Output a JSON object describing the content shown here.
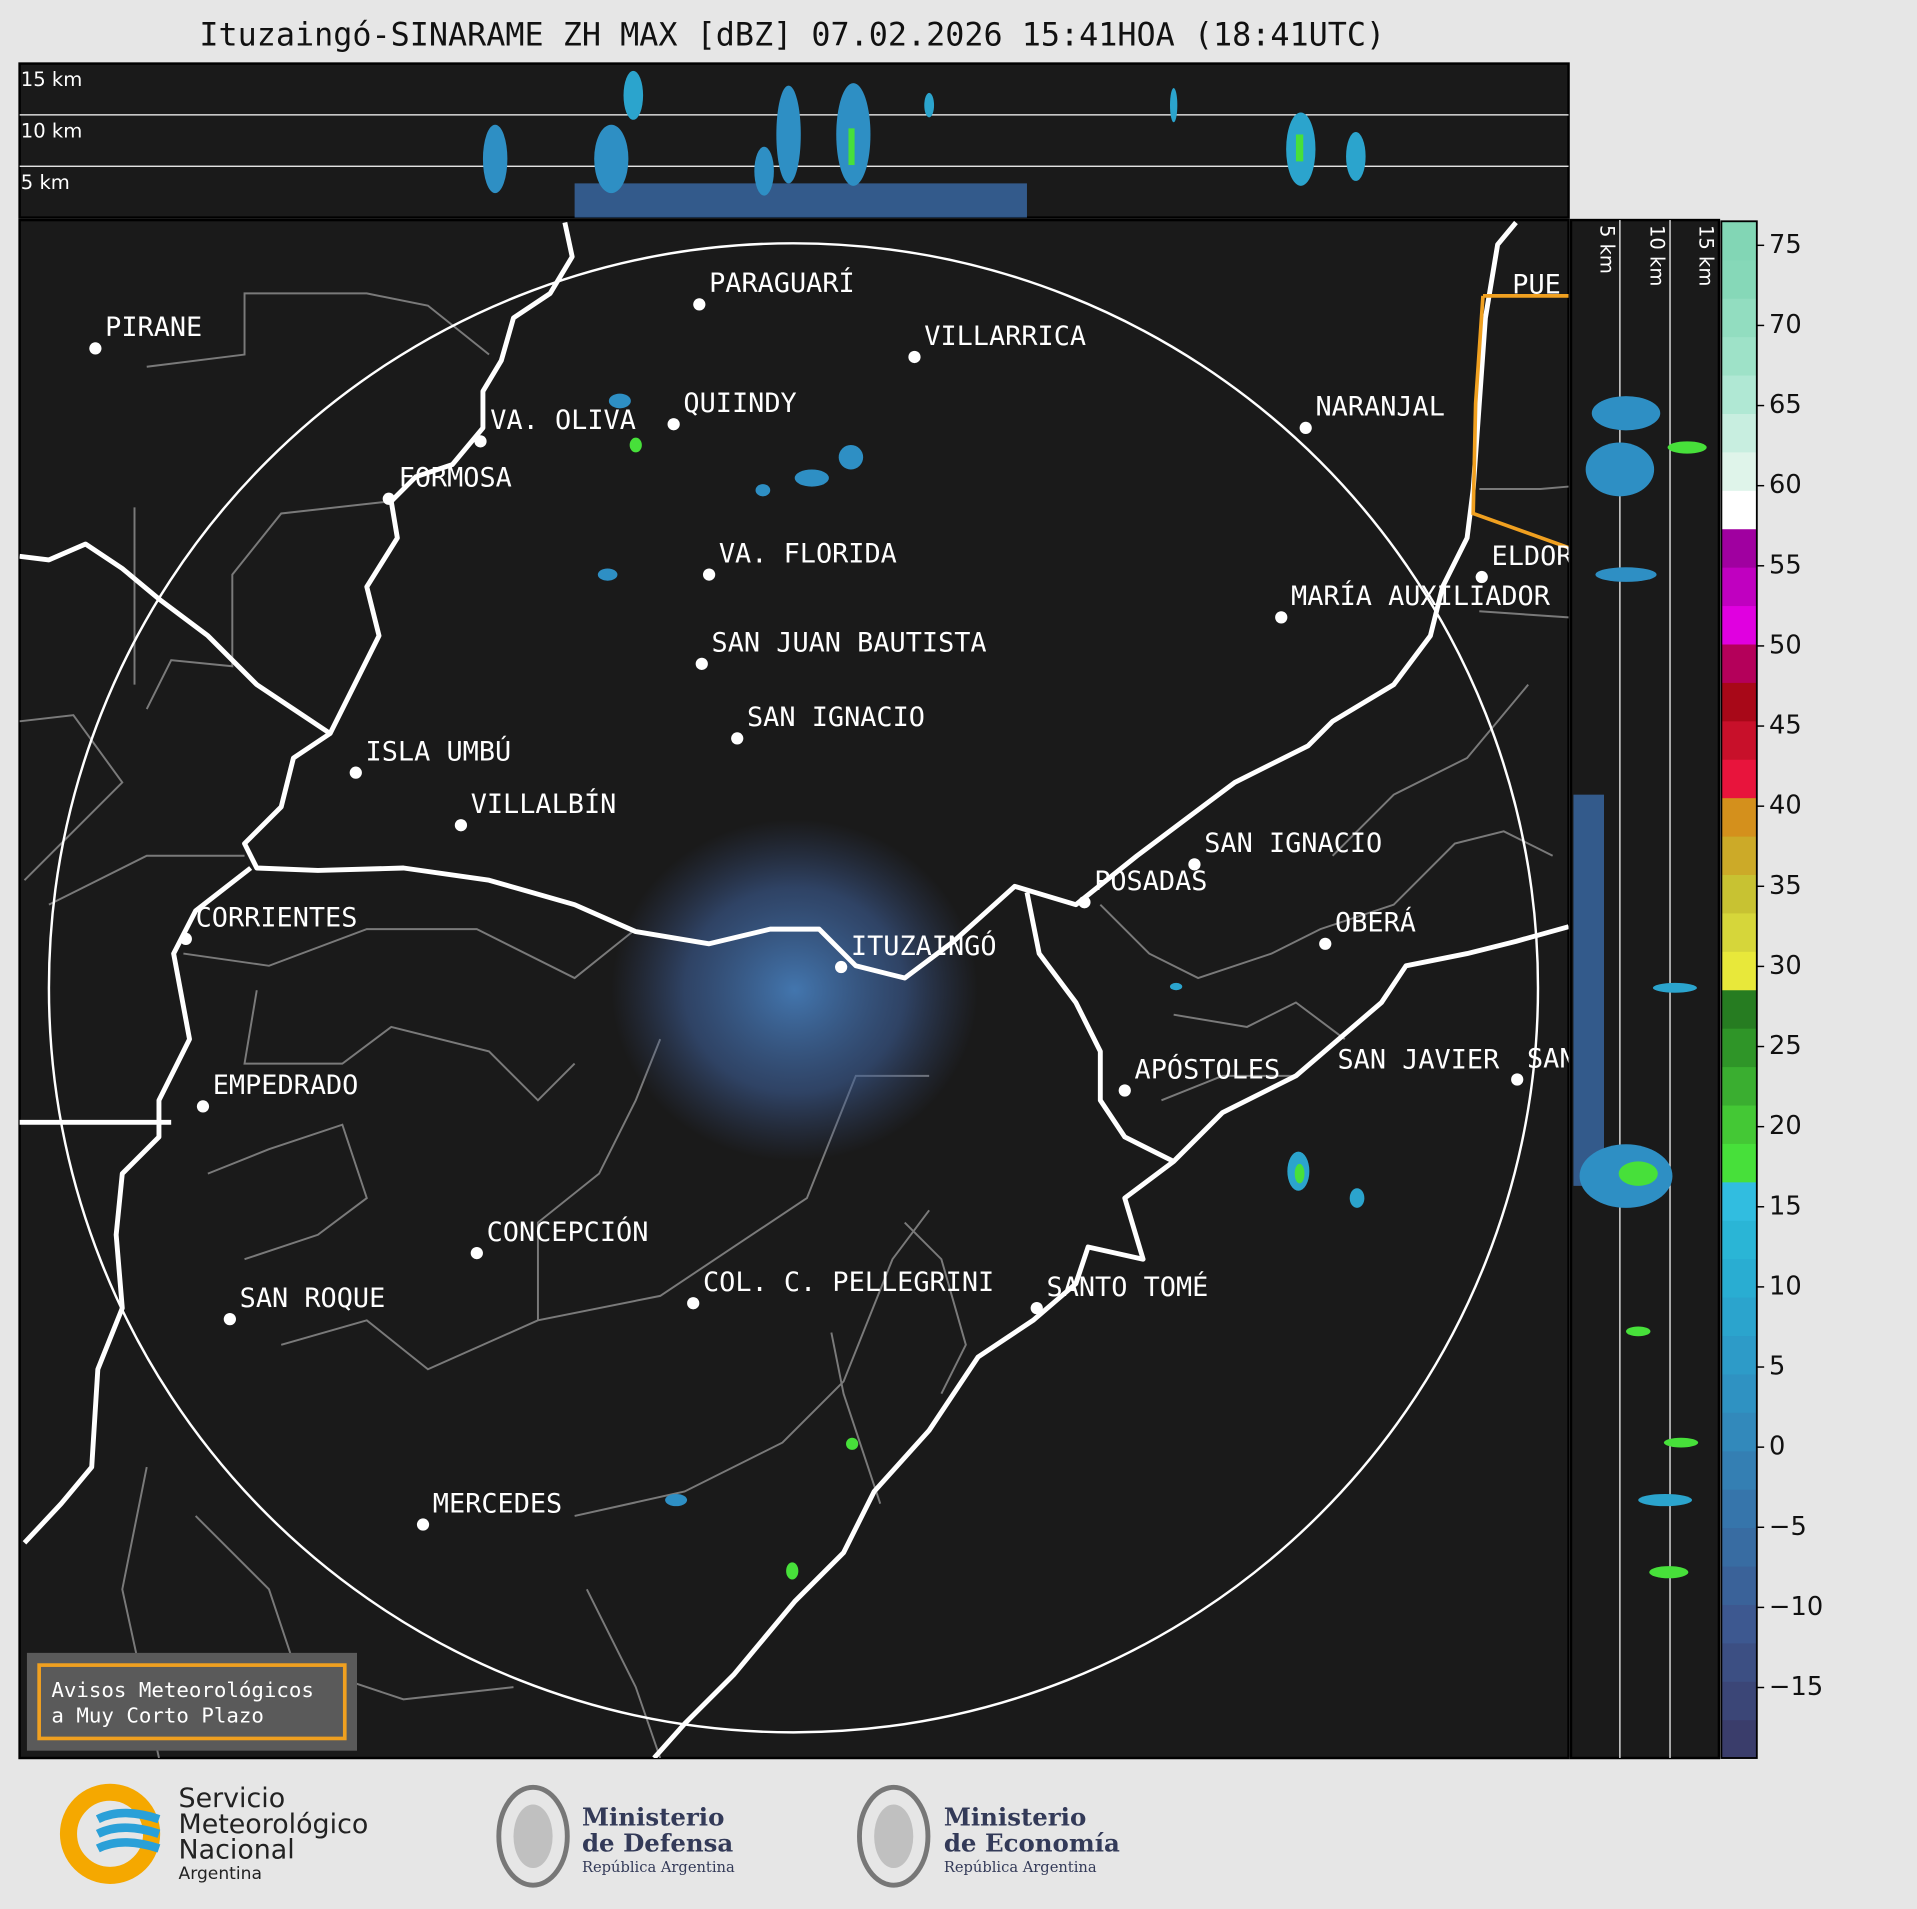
{
  "header": {
    "title": "Ituzaingó-SINARAME ZH MAX [dBZ] 07.02.2026 15:41HOA (18:41UTC)"
  },
  "height_panel": {
    "labels": [
      "15 km",
      "10 km",
      "5 km"
    ]
  },
  "side_panel": {
    "labels": [
      "5 km",
      "10 km",
      "15 km"
    ]
  },
  "map": {
    "places": [
      "PIRANE",
      "PARAGUARÍ",
      "VILLARRICA",
      "QUIINDY",
      "VA. OLIVA",
      "FORMOSA",
      "NARANJAL",
      "VA. FLORIDA",
      "MARÍA AUXILIADOR",
      "ELDOR",
      "PUE",
      "SAN JUAN BAUTISTA",
      "SAN IGNACIO",
      "ISLA UMBÚ",
      "VILLALBÍN",
      "SAN IGNACIO",
      "POSADAS",
      "CORRIENTES",
      "OBERÁ",
      "ITUZAINGÓ",
      "EMPEDRADO",
      "APÓSTOLES",
      "SAN JAVIER",
      "SAN",
      "CONCEPCIÓN",
      "COL. C. PELLEGRINI",
      "SANTO TOMÉ",
      "SAN ROQUE",
      "MERCEDES"
    ]
  },
  "colorbar": {
    "lim": [
      -19.4,
      76.5
    ],
    "ticks": [
      {
        "value": -15,
        "label": "−15"
      },
      {
        "value": -10,
        "label": "−10"
      },
      {
        "value": -5,
        "label": "−5"
      },
      0,
      5,
      10,
      15,
      20,
      25,
      30,
      35,
      40,
      45,
      50,
      55,
      60,
      65,
      70,
      75
    ],
    "colors": [
      "#3a3d6b",
      "#3b4677",
      "#3c4f83",
      "#3d5890",
      "#3a6299",
      "#386ca2",
      "#3675ab",
      "#347fb3",
      "#3289bb",
      "#2f92c2",
      "#2d9bc8",
      "#2ba4cd",
      "#29add2",
      "#2ab5d6",
      "#31bde0",
      "#47e03a",
      "#44c835",
      "#3aae30",
      "#2f9528",
      "#267c21",
      "#e8e83a",
      "#d6d63a",
      "#c8c232",
      "#ccaa28",
      "#d4901c",
      "#e8143c",
      "#c8102a",
      "#a80818",
      "#b4005a",
      "#e000e0",
      "#c000c0",
      "#a000a0",
      "#ffffff",
      "#dff4ea",
      "#c8eee0",
      "#b0e8d4",
      "#9ee2c8",
      "#92ddc0",
      "#86d8b8",
      "#82d6b5"
    ]
  },
  "notice": {
    "lines": [
      "Avisos Meteorológicos",
      "a Muy Corto Plazo"
    ]
  },
  "footer": {
    "smn": [
      "Servicio",
      "Meteorológico",
      "Nacional",
      "Argentina"
    ],
    "defensa": [
      "Ministerio",
      "de Defensa",
      "República Argentina"
    ],
    "economia": [
      "Ministerio",
      "de Economía",
      "República Argentina"
    ]
  }
}
